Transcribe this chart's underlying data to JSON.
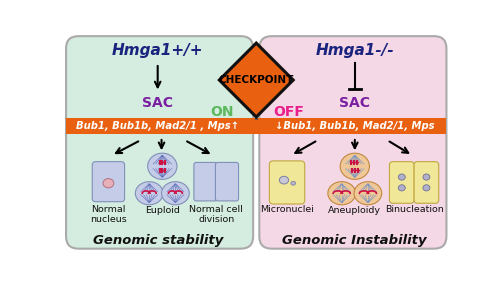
{
  "fig_width": 5.0,
  "fig_height": 2.82,
  "dpi": 100,
  "bg_color": "#ffffff",
  "left_box_color": "#d4ede0",
  "right_box_color": "#f5d8e5",
  "orange_bar_color": "#e86010",
  "checkpoint_color": "#e86010",
  "checkpoint_border": "#111111",
  "left_title": "Hmga1+/+",
  "right_title": "Hmga1-/-",
  "title_color": "#1a237e",
  "sac_color": "#7b1fa2",
  "on_color": "#5cb85c",
  "off_color": "#e91e8c",
  "left_bar_text": "Bub1, Bub1b, Mad2/1 , Mps↑",
  "right_bar_text": "↓Bub1, Bub1b, Mad2/1, Mps",
  "bar_text_color": "#ffffff",
  "left_bottom_title": "Genomic stability",
  "right_bottom_title": "Genomic Instability",
  "bottom_title_color": "#111111",
  "left_labels": [
    "Normal\nnucleus",
    "Euploid",
    "Normal cell\ndivision"
  ],
  "right_labels": [
    "Micronuclei",
    "Aneuploidy",
    "Binucleation"
  ],
  "label_color": "#111111",
  "outer_border_color": "#aaaaaa",
  "cell_blue": "#c5cce8",
  "cell_blue_edge": "#8090b8",
  "cell_yellow": "#f0e898",
  "cell_yellow_edge": "#c0a840",
  "spindle_color": "#6070b8",
  "chr_color": "#cc1144",
  "nuc_pink": "#e8b0b8",
  "nuc_pink_edge": "#b07080"
}
